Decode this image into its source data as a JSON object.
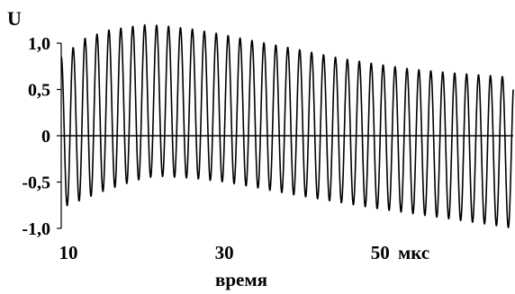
{
  "chart_data": {
    "type": "line",
    "title": "",
    "xlabel": "время",
    "ylabel": "U",
    "x_unit": "мкс",
    "x_ticks": [
      "10",
      "30",
      "50"
    ],
    "x_tick_values": [
      10,
      30,
      50
    ],
    "y_ticks": [
      "1,0",
      "0,5",
      "0",
      "-0,5",
      "-1,0"
    ],
    "y_tick_values": [
      1.0,
      0.5,
      0,
      -0.5,
      -1.0
    ],
    "xlim": [
      10,
      68
    ],
    "ylim": [
      -1.0,
      1.0
    ],
    "grid": false,
    "zero_line": true,
    "series": [
      {
        "color": "#000000",
        "description": "oscillation of about 38 periods over the visible range (period ≈ 1.5 мкс); upper envelope rises to ~1.20 near 21 мкс then decays to ~0.63 at 68 мкс; lower envelope ~-0.78 at start, shallowest ~-0.44 near 21 мкс, reaching ~-1.0 at 68 мкс",
        "envelope_x": [
          10,
          13,
          16,
          19,
          21,
          23,
          27,
          31,
          35,
          40,
          45,
          50,
          55,
          60,
          65,
          68
        ],
        "upper_envelope": [
          0.85,
          1.05,
          1.14,
          1.18,
          1.2,
          1.19,
          1.15,
          1.09,
          1.02,
          0.94,
          0.85,
          0.78,
          0.72,
          0.68,
          0.65,
          0.63
        ],
        "lower_envelope": [
          -0.78,
          -0.68,
          -0.58,
          -0.5,
          -0.45,
          -0.44,
          -0.46,
          -0.5,
          -0.56,
          -0.64,
          -0.71,
          -0.78,
          -0.84,
          -0.9,
          -0.96,
          -1.0
        ],
        "period": 1.53
      }
    ]
  }
}
